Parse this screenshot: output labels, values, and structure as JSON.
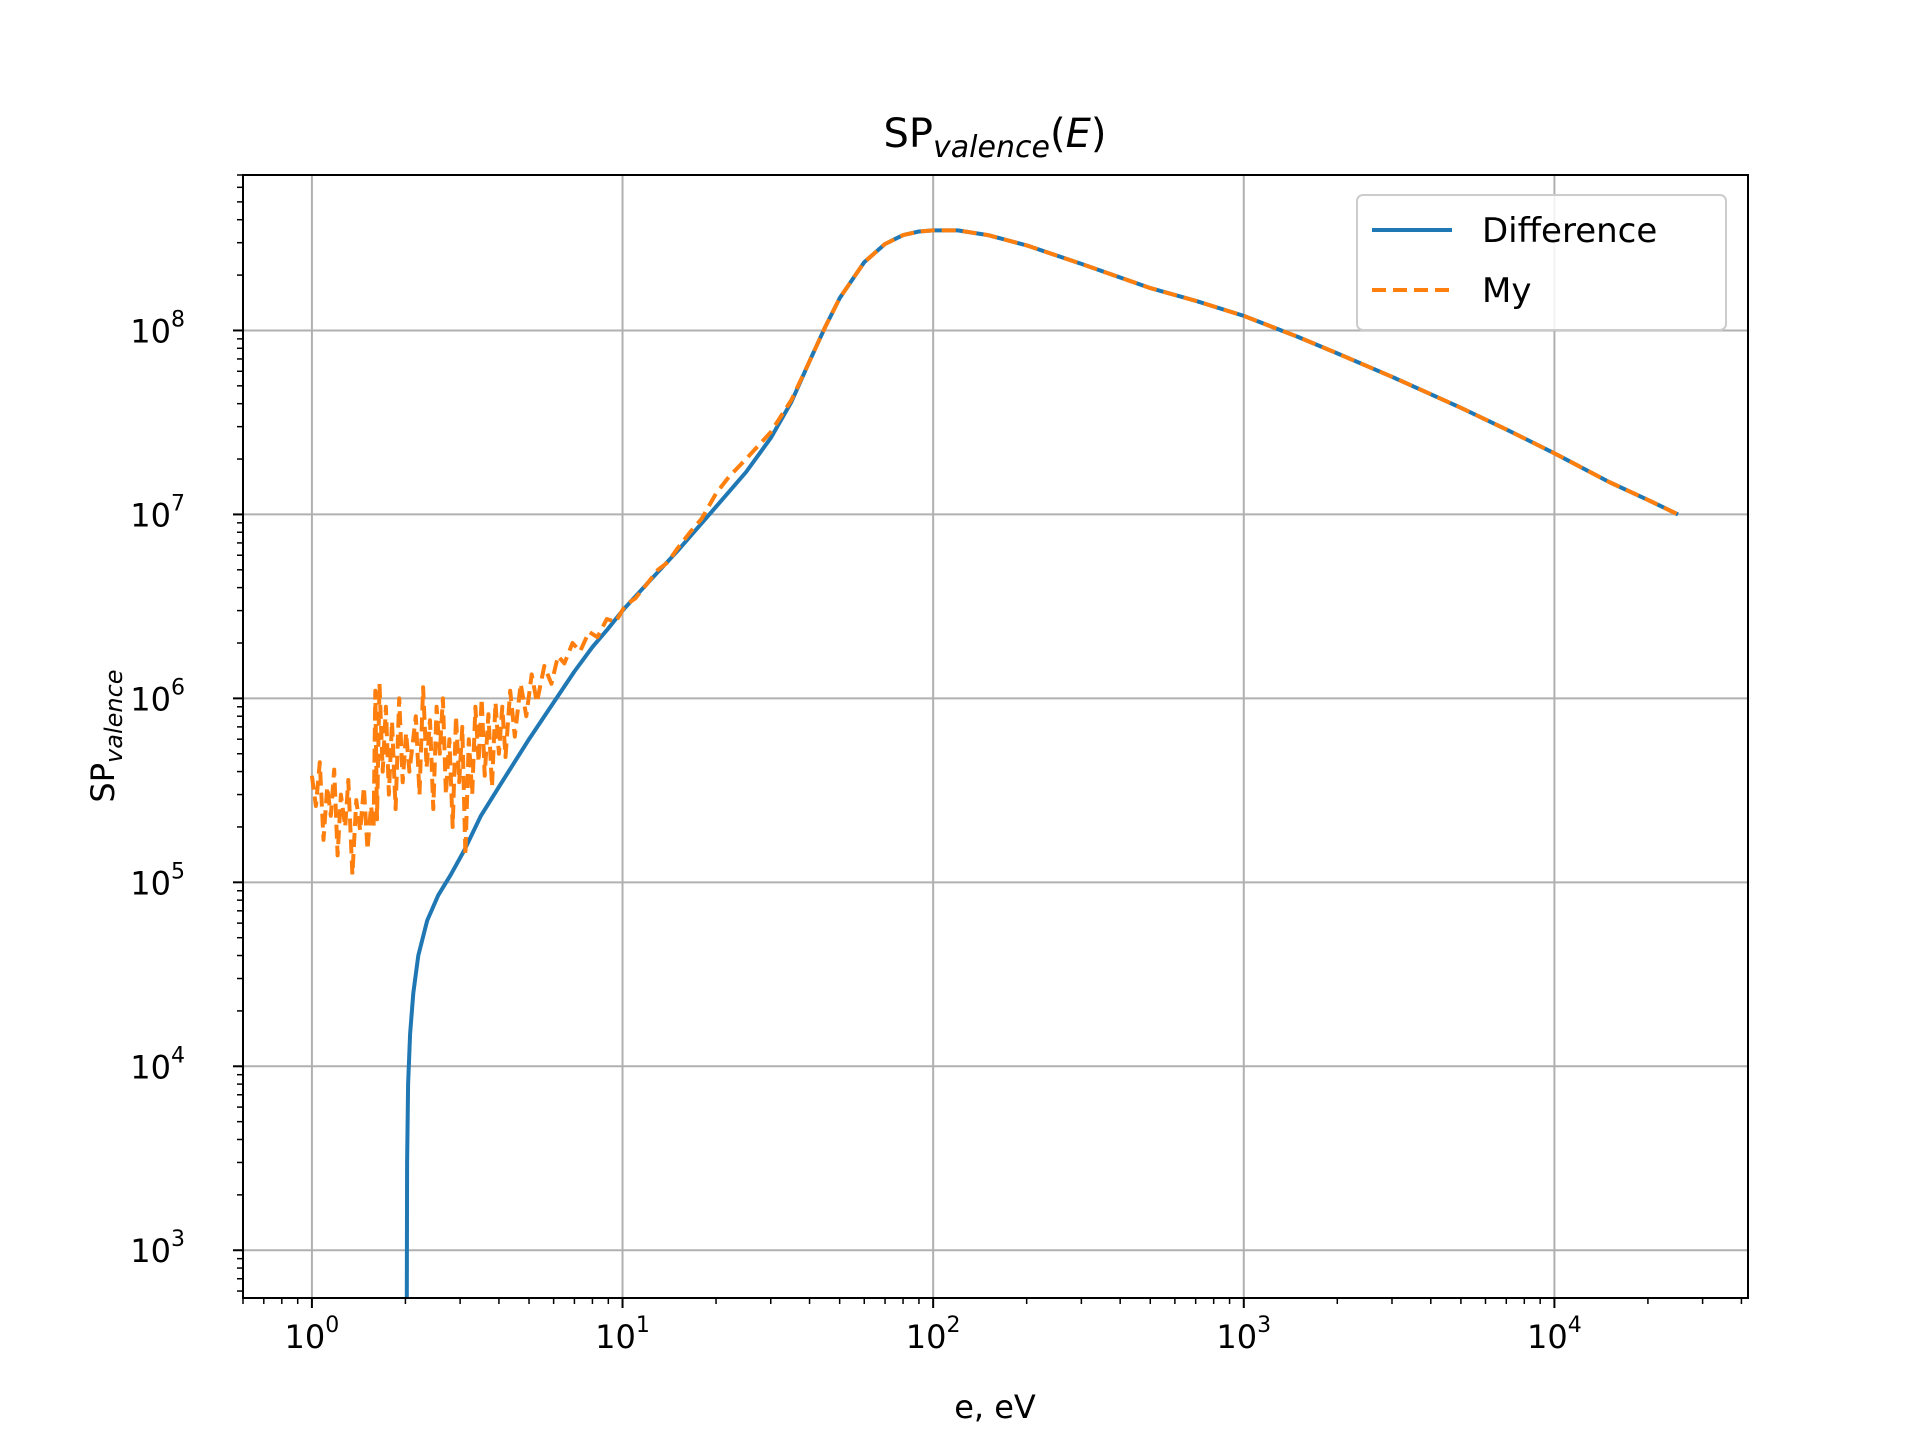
{
  "chart_data": {
    "type": "line",
    "title": {
      "base": "SP",
      "sub": "valence",
      "suffix_open": "(",
      "var": "E",
      "suffix_close": ")"
    },
    "xlabel": "e, eV",
    "ylabel": {
      "base": "SP",
      "sub": "valence"
    },
    "xscale": "log",
    "yscale": "log",
    "xlim": [
      0.6,
      42000
    ],
    "ylim": [
      550,
      700000000
    ],
    "grid": true,
    "legend_position": "top-right",
    "x_ticks": [
      {
        "value": 1,
        "base": "10",
        "exp": "0"
      },
      {
        "value": 10,
        "base": "10",
        "exp": "1"
      },
      {
        "value": 100,
        "base": "10",
        "exp": "2"
      },
      {
        "value": 1000,
        "base": "10",
        "exp": "3"
      },
      {
        "value": 10000,
        "base": "10",
        "exp": "4"
      }
    ],
    "y_ticks": [
      {
        "value": 1000,
        "base": "10",
        "exp": "3"
      },
      {
        "value": 10000,
        "base": "10",
        "exp": "4"
      },
      {
        "value": 100000,
        "base": "10",
        "exp": "5"
      },
      {
        "value": 1000000,
        "base": "10",
        "exp": "6"
      },
      {
        "value": 10000000,
        "base": "10",
        "exp": "7"
      },
      {
        "value": 100000000,
        "base": "10",
        "exp": "8"
      }
    ],
    "series": [
      {
        "name": "Difference",
        "color": "#1f77b4",
        "style": "solid",
        "x": [
          2.02,
          2.025,
          2.04,
          2.07,
          2.12,
          2.2,
          2.35,
          2.55,
          2.8,
          3.1,
          3.5,
          4.0,
          5.0,
          6.0,
          7.0,
          8.0,
          9.0,
          10,
          12,
          15,
          20,
          25,
          30,
          35,
          40,
          45,
          50,
          60,
          70,
          80,
          90,
          100,
          120,
          150,
          200,
          300,
          500,
          700,
          1000,
          1500,
          2000,
          3000,
          5000,
          7000,
          10000,
          15000,
          20000,
          25000
        ],
        "y": [
          550,
          3000,
          8000,
          15000,
          25000,
          40000,
          62000,
          85000,
          110000,
          150000,
          230000,
          330000,
          600000,
          950000,
          1400000,
          1900000,
          2400000,
          3000000,
          4200000,
          6300000,
          11000000,
          17000000,
          26000000,
          41000000,
          68000000,
          105000000,
          150000000,
          235000000,
          295000000,
          330000000,
          345000000,
          350000000,
          350000000,
          330000000,
          290000000,
          230000000,
          170000000,
          145000000,
          120000000,
          92000000,
          75000000,
          56000000,
          38000000,
          29000000,
          21500000,
          15000000,
          12000000,
          10000000
        ]
      },
      {
        "name": "My",
        "color": "#ff7f0e",
        "style": "dashed",
        "x": [
          1.0,
          1.03,
          1.06,
          1.09,
          1.12,
          1.15,
          1.18,
          1.21,
          1.24,
          1.28,
          1.31,
          1.35,
          1.39,
          1.43,
          1.47,
          1.51,
          1.55,
          1.58,
          1.6,
          1.62,
          1.65,
          1.69,
          1.73,
          1.77,
          1.81,
          1.86,
          1.91,
          1.96,
          2.01,
          2.06,
          2.11,
          2.16,
          2.22,
          2.28,
          2.34,
          2.4,
          2.46,
          2.52,
          2.58,
          2.64,
          2.7,
          2.77,
          2.84,
          2.91,
          2.98,
          3.05,
          3.12,
          3.2,
          3.28,
          3.36,
          3.44,
          3.52,
          3.6,
          3.7,
          3.8,
          3.9,
          4.0,
          4.1,
          4.2,
          4.35,
          4.5,
          4.7,
          4.9,
          5.1,
          5.3,
          5.6,
          5.9,
          6.2,
          6.5,
          6.9,
          7.3,
          7.8,
          8.3,
          8.9,
          9.5,
          10.2,
          11,
          12,
          13,
          14,
          15,
          16.5,
          18,
          20,
          22,
          25,
          30,
          35,
          40,
          45,
          50,
          60,
          70,
          80,
          90,
          100,
          120,
          150,
          200,
          300,
          500,
          700,
          1000,
          1500,
          2000,
          3000,
          5000,
          7000,
          10000,
          15000,
          20000,
          25000
        ],
        "y": [
          380000,
          260000,
          450000,
          170000,
          330000,
          230000,
          410000,
          140000,
          300000,
          200000,
          360000,
          110000,
          280000,
          190000,
          330000,
          150000,
          260000,
          200000,
          1100000,
          220000,
          1200000,
          400000,
          900000,
          300000,
          750000,
          250000,
          1000000,
          350000,
          650000,
          400000,
          560000,
          800000,
          300000,
          1150000,
          420000,
          760000,
          250000,
          900000,
          500000,
          1000000,
          300000,
          600000,
          200000,
          800000,
          350000,
          700000,
          140000,
          600000,
          300000,
          900000,
          450000,
          1000000,
          380000,
          820000,
          330000,
          950000,
          500000,
          900000,
          480000,
          1100000,
          620000,
          1200000,
          800000,
          1350000,
          950000,
          1500000,
          1200000,
          1700000,
          1550000,
          2000000,
          1800000,
          2300000,
          2150000,
          2700000,
          2600000,
          3200000,
          3500000,
          4200000,
          5000000,
          5500000,
          6500000,
          8000000,
          9500000,
          13000000,
          16000000,
          20000000,
          28000000,
          42000000,
          68000000,
          105000000,
          150000000,
          235000000,
          295000000,
          330000000,
          345000000,
          350000000,
          350000000,
          330000000,
          290000000,
          230000000,
          170000000,
          145000000,
          120000000,
          92000000,
          75000000,
          56000000,
          38000000,
          29000000,
          21500000,
          15000000,
          12000000,
          10000000
        ]
      }
    ]
  }
}
